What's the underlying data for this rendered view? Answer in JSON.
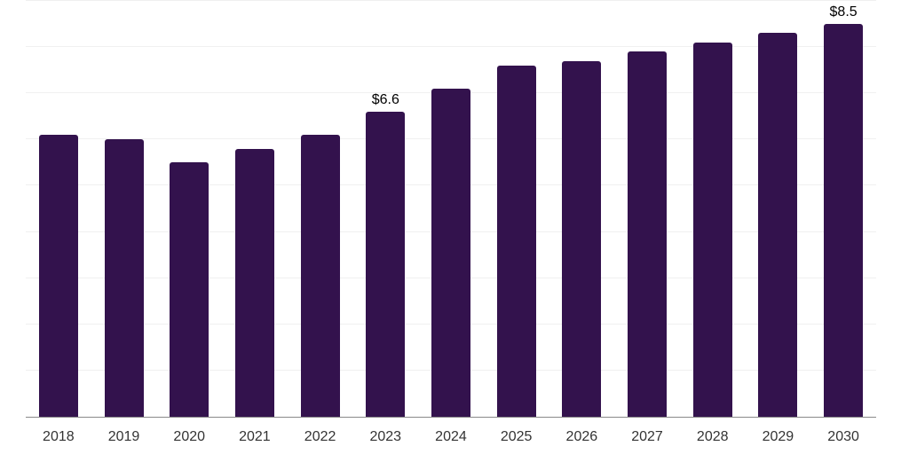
{
  "chart_data": {
    "type": "bar",
    "title": "",
    "xlabel": "",
    "ylabel": "",
    "categories": [
      "2018",
      "2019",
      "2020",
      "2021",
      "2022",
      "2023",
      "2024",
      "2025",
      "2026",
      "2027",
      "2028",
      "2029",
      "2030"
    ],
    "values": [
      6.1,
      6.0,
      5.5,
      5.8,
      6.1,
      6.6,
      7.1,
      7.6,
      7.7,
      7.9,
      8.1,
      8.3,
      8.5
    ],
    "bar_labels": [
      "",
      "",
      "",
      "",
      "",
      "$6.6",
      "",
      "",
      "",
      "",
      "",
      "",
      "$8.5"
    ],
    "ylim": [
      0,
      9
    ],
    "gridline_step": 1,
    "grid": "horizontal",
    "legend_position": "none",
    "colors": {
      "bar": "#33124d",
      "gridline": "#f0f0f0",
      "axis_line": "#8a8a8a",
      "tick_label": "#333333",
      "data_label": "#000000",
      "background": "#ffffff"
    }
  }
}
